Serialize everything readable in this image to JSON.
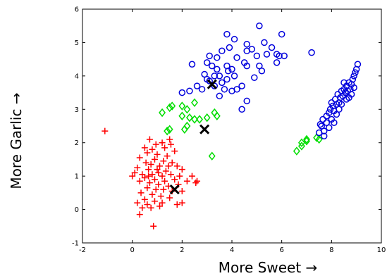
{
  "chart_data": {
    "type": "scatter",
    "title": "",
    "xlabel": "More Sweet →",
    "ylabel": "More Garlic →",
    "xlim": [
      -2,
      10
    ],
    "ylim": [
      -1,
      6
    ],
    "xticks": [
      -2,
      0,
      2,
      4,
      6,
      8,
      10
    ],
    "yticks": [
      -1,
      0,
      1,
      2,
      3,
      4,
      5,
      6
    ],
    "grid": false,
    "legend": "none",
    "series": [
      {
        "marker": "plus",
        "color": "#ff0000",
        "points": [
          [
            -1.1,
            2.35
          ],
          [
            0.7,
            2.1
          ],
          [
            0.95,
            1.95
          ],
          [
            1.2,
            2.0
          ],
          [
            1.5,
            2.1
          ],
          [
            1.55,
            1.95
          ],
          [
            0.5,
            1.85
          ],
          [
            0.8,
            1.8
          ],
          [
            1.3,
            1.85
          ],
          [
            1.7,
            1.75
          ],
          [
            0.6,
            1.7
          ],
          [
            1.0,
            1.65
          ],
          [
            1.4,
            1.6
          ],
          [
            0.3,
            1.55
          ],
          [
            0.9,
            1.5
          ],
          [
            1.25,
            1.45
          ],
          [
            1.6,
            1.4
          ],
          [
            0.55,
            1.4
          ],
          [
            0.75,
            1.35
          ],
          [
            1.1,
            1.3
          ],
          [
            1.45,
            1.3
          ],
          [
            1.8,
            1.3
          ],
          [
            0.2,
            1.25
          ],
          [
            0.65,
            1.2
          ],
          [
            1.0,
            1.2
          ],
          [
            1.35,
            1.15
          ],
          [
            2.0,
            1.2
          ],
          [
            0.1,
            1.1
          ],
          [
            0.4,
            1.05
          ],
          [
            0.8,
            1.05
          ],
          [
            1.2,
            1.0
          ],
          [
            1.55,
            1.05
          ],
          [
            1.9,
            1.0
          ],
          [
            2.4,
            1.0
          ],
          [
            0.0,
            1.0
          ],
          [
            0.5,
            0.95
          ],
          [
            0.9,
            0.9
          ],
          [
            1.3,
            0.85
          ],
          [
            1.7,
            0.9
          ],
          [
            2.2,
            0.85
          ],
          [
            0.3,
            0.85
          ],
          [
            0.7,
            0.8
          ],
          [
            1.05,
            0.75
          ],
          [
            1.45,
            0.7
          ],
          [
            1.85,
            0.75
          ],
          [
            2.6,
            0.85
          ],
          [
            2.55,
            0.8
          ],
          [
            0.6,
            0.65
          ],
          [
            0.95,
            0.6
          ],
          [
            1.25,
            0.6
          ],
          [
            1.6,
            0.55
          ],
          [
            2.0,
            0.55
          ],
          [
            0.35,
            0.5
          ],
          [
            0.8,
            0.45
          ],
          [
            1.15,
            0.4
          ],
          [
            1.5,
            0.35
          ],
          [
            0.5,
            0.3
          ],
          [
            0.2,
            0.2
          ],
          [
            0.9,
            0.25
          ],
          [
            1.2,
            0.2
          ],
          [
            0.6,
            0.15
          ],
          [
            1.1,
            0.1
          ],
          [
            0.4,
            0.05
          ],
          [
            0.75,
            0.05
          ],
          [
            1.8,
            0.15
          ],
          [
            2.0,
            0.2
          ],
          [
            0.3,
            -0.15
          ],
          [
            0.85,
            -0.5
          ],
          [
            0.65,
            1.0
          ],
          [
            1.05,
            1.1
          ]
        ]
      },
      {
        "marker": "diamond",
        "color": "#00dd00",
        "points": [
          [
            1.2,
            2.9
          ],
          [
            1.5,
            3.05
          ],
          [
            1.6,
            3.1
          ],
          [
            2.0,
            3.1
          ],
          [
            2.2,
            3.0
          ],
          [
            2.5,
            3.2
          ],
          [
            2.0,
            2.8
          ],
          [
            2.3,
            2.75
          ],
          [
            2.5,
            2.7
          ],
          [
            2.7,
            2.7
          ],
          [
            3.0,
            2.75
          ],
          [
            3.3,
            2.9
          ],
          [
            3.4,
            2.8
          ],
          [
            2.2,
            2.5
          ],
          [
            2.1,
            2.4
          ],
          [
            1.5,
            2.4
          ],
          [
            1.4,
            2.35
          ],
          [
            3.2,
            1.6
          ],
          [
            6.6,
            1.75
          ],
          [
            6.8,
            1.9
          ],
          [
            6.8,
            2.0
          ],
          [
            7.0,
            2.05
          ],
          [
            7.0,
            2.1
          ],
          [
            7.4,
            2.15
          ],
          [
            7.5,
            2.1
          ]
        ]
      },
      {
        "marker": "circle",
        "color": "#0000dd",
        "points": [
          [
            2.0,
            3.5
          ],
          [
            2.3,
            3.55
          ],
          [
            2.6,
            3.7
          ],
          [
            2.8,
            3.6
          ],
          [
            2.4,
            4.35
          ],
          [
            2.9,
            4.05
          ],
          [
            3.1,
            3.85
          ],
          [
            3.5,
            3.4
          ],
          [
            3.3,
            3.7
          ],
          [
            3.6,
            3.8
          ],
          [
            3.7,
            3.6
          ],
          [
            3.5,
            4.0
          ],
          [
            3.2,
            4.3
          ],
          [
            3.4,
            4.2
          ],
          [
            3.8,
            4.3
          ],
          [
            4.0,
            4.2
          ],
          [
            3.1,
            4.6
          ],
          [
            3.4,
            4.55
          ],
          [
            3.6,
            4.75
          ],
          [
            3.9,
            4.85
          ],
          [
            3.0,
            4.4
          ],
          [
            3.3,
            4.0
          ],
          [
            3.8,
            3.9
          ],
          [
            4.1,
            4.0
          ],
          [
            4.2,
            3.6
          ],
          [
            4.4,
            3.7
          ],
          [
            4.5,
            4.4
          ],
          [
            4.6,
            4.3
          ],
          [
            4.6,
            4.75
          ],
          [
            4.8,
            4.8
          ],
          [
            4.6,
            4.95
          ],
          [
            5.0,
            4.6
          ],
          [
            5.1,
            4.3
          ],
          [
            5.4,
            4.65
          ],
          [
            5.6,
            4.85
          ],
          [
            5.3,
            5.0
          ],
          [
            5.8,
            4.65
          ],
          [
            6.1,
            4.6
          ],
          [
            6.0,
            5.25
          ],
          [
            5.9,
            4.6
          ],
          [
            4.6,
            3.25
          ],
          [
            4.4,
            3.0
          ],
          [
            3.8,
            5.25
          ],
          [
            4.1,
            5.1
          ],
          [
            5.1,
            5.5
          ],
          [
            5.8,
            4.4
          ],
          [
            4.9,
            3.95
          ],
          [
            3.0,
            3.9
          ],
          [
            7.2,
            4.7
          ],
          [
            4.0,
            3.55
          ],
          [
            4.2,
            4.55
          ],
          [
            3.85,
            4.15
          ],
          [
            5.2,
            4.15
          ],
          [
            7.5,
            2.3
          ],
          [
            7.6,
            2.5
          ],
          [
            7.7,
            2.35
          ],
          [
            7.8,
            2.6
          ],
          [
            7.9,
            2.45
          ],
          [
            7.65,
            2.7
          ],
          [
            7.8,
            2.8
          ],
          [
            7.9,
            2.9
          ],
          [
            8.0,
            2.7
          ],
          [
            7.95,
            3.0
          ],
          [
            8.05,
            3.1
          ],
          [
            8.1,
            2.95
          ],
          [
            8.2,
            3.15
          ],
          [
            8.15,
            3.3
          ],
          [
            8.3,
            3.2
          ],
          [
            8.25,
            3.45
          ],
          [
            8.35,
            3.35
          ],
          [
            8.4,
            3.55
          ],
          [
            8.45,
            3.4
          ],
          [
            8.5,
            3.6
          ],
          [
            8.55,
            3.5
          ],
          [
            8.6,
            3.7
          ],
          [
            8.65,
            3.55
          ],
          [
            8.7,
            3.8
          ],
          [
            8.75,
            3.6
          ],
          [
            8.8,
            3.75
          ],
          [
            8.85,
            3.9
          ],
          [
            8.9,
            4.0
          ],
          [
            8.95,
            4.1
          ],
          [
            9.0,
            4.2
          ],
          [
            9.05,
            4.35
          ],
          [
            8.4,
            3.15
          ],
          [
            8.3,
            3.0
          ],
          [
            8.0,
            3.2
          ],
          [
            8.6,
            3.3
          ],
          [
            8.8,
            3.45
          ],
          [
            8.5,
            3.8
          ],
          [
            7.55,
            2.55
          ],
          [
            7.7,
            2.2
          ],
          [
            8.1,
            2.6
          ],
          [
            8.9,
            3.65
          ],
          [
            8.2,
            2.85
          ],
          [
            8.7,
            3.35
          ]
        ]
      },
      {
        "marker": "x",
        "color": "#000000",
        "points": [
          [
            1.7,
            0.6
          ],
          [
            2.9,
            2.4
          ],
          [
            3.2,
            3.75
          ]
        ]
      }
    ]
  }
}
